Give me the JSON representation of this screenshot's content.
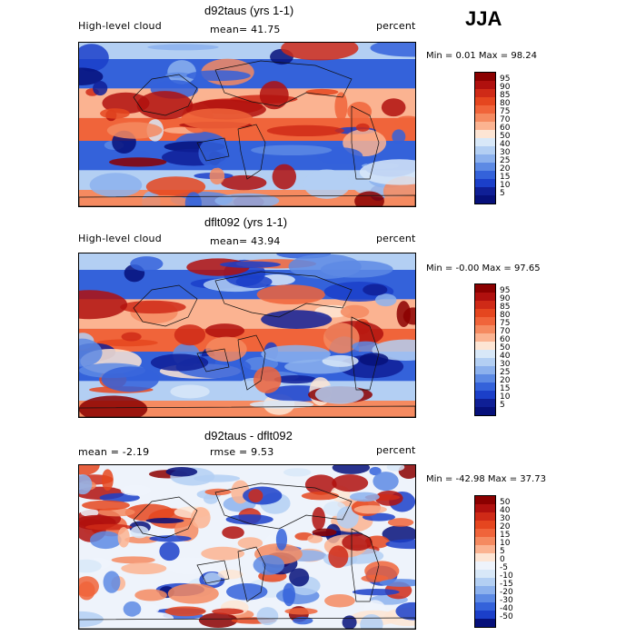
{
  "season": "JJA",
  "panels": [
    {
      "title": "d92taus (yrs 1-1)",
      "left_label": "High-level cloud",
      "stat1": "mean=  41.75",
      "stat2": "",
      "units": "percent",
      "minmax": "Min =    0.01  Max =   98.24",
      "colorbar": [
        "95",
        "90",
        "85",
        "80",
        "75",
        "70",
        "60",
        "50",
        "40",
        "30",
        "25",
        "20",
        "15",
        "10",
        "5"
      ],
      "colors": [
        "#8b0000",
        "#b0100e",
        "#cf2a17",
        "#e5461f",
        "#f0643a",
        "#f58a60",
        "#fbb391",
        "#fde5d4",
        "#d8e8f8",
        "#b3cff3",
        "#8cb1ed",
        "#5d8ae4",
        "#3462da",
        "#1b3fc9",
        "#0f1f96",
        "#06107a"
      ]
    },
    {
      "title": "dflt092 (yrs 1-1)",
      "left_label": "High-level cloud",
      "stat1": "mean=  43.94",
      "stat2": "",
      "units": "percent",
      "minmax": "Min =   -0.00  Max =   97.65",
      "colorbar": [
        "95",
        "90",
        "85",
        "80",
        "75",
        "70",
        "60",
        "50",
        "40",
        "30",
        "25",
        "20",
        "15",
        "10",
        "5"
      ],
      "colors": [
        "#8b0000",
        "#b0100e",
        "#cf2a17",
        "#e5461f",
        "#f0643a",
        "#f58a60",
        "#fbb391",
        "#fde5d4",
        "#d8e8f8",
        "#b3cff3",
        "#8cb1ed",
        "#5d8ae4",
        "#3462da",
        "#1b3fc9",
        "#0f1f96",
        "#06107a"
      ]
    },
    {
      "title": "d92taus - dflt092",
      "left_label": "",
      "stat1": "mean =   -2.19",
      "stat2": "rmse =    9.53",
      "units": "percent",
      "minmax": "Min =  -42.98  Max =   37.73",
      "colorbar": [
        "50",
        "40",
        "30",
        "20",
        "15",
        "10",
        "5",
        "0",
        "-5",
        "-10",
        "-15",
        "-20",
        "-30",
        "-40",
        "-50"
      ],
      "colors": [
        "#8b0000",
        "#b0100e",
        "#cf2a17",
        "#e5461f",
        "#f0643a",
        "#f58a60",
        "#fbb391",
        "#fde5d4",
        "#eef3fb",
        "#d8e8f8",
        "#b3cff3",
        "#8cb1ed",
        "#5d8ae4",
        "#3462da",
        "#1b3fc9",
        "#06107a"
      ]
    }
  ],
  "chart_data": [
    {
      "type": "heatmap",
      "title": "d92taus (yrs 1-1)",
      "variable": "High-level cloud",
      "units": "percent",
      "mean": 41.75,
      "min": 0.01,
      "max": 98.24,
      "levels": [
        5,
        10,
        15,
        20,
        25,
        30,
        40,
        50,
        60,
        70,
        75,
        80,
        85,
        90,
        95
      ]
    },
    {
      "type": "heatmap",
      "title": "dflt092 (yrs 1-1)",
      "variable": "High-level cloud",
      "units": "percent",
      "mean": 43.94,
      "min": -0.0,
      "max": 97.65,
      "levels": [
        5,
        10,
        15,
        20,
        25,
        30,
        40,
        50,
        60,
        70,
        75,
        80,
        85,
        90,
        95
      ]
    },
    {
      "type": "heatmap",
      "title": "d92taus - dflt092",
      "units": "percent",
      "mean": -2.19,
      "rmse": 9.53,
      "min": -42.98,
      "max": 37.73,
      "levels": [
        -50,
        -40,
        -30,
        -20,
        -15,
        -10,
        -5,
        0,
        5,
        10,
        15,
        20,
        30,
        40,
        50
      ]
    }
  ]
}
